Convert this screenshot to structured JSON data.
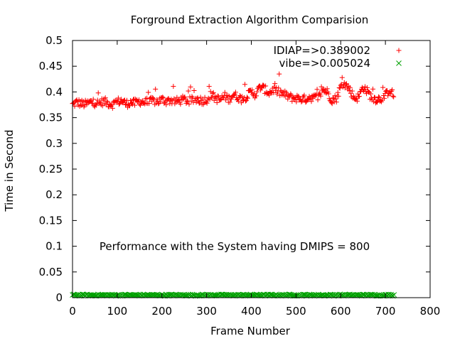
{
  "chart_data": {
    "type": "scatter",
    "title": "Forground Extraction Algorithm Comparision",
    "xlabel": "Frame Number",
    "ylabel": "Time in Second",
    "xlim": [
      0,
      800
    ],
    "ylim": [
      0,
      0.5
    ],
    "xticks": [
      "0",
      "100",
      "200",
      "300",
      "400",
      "500",
      "600",
      "700",
      "800"
    ],
    "yticks": [
      "0",
      "0.05",
      "0.1",
      "0.15",
      "0.2",
      "0.25",
      "0.3",
      "0.35",
      "0.4",
      "0.45",
      "0.5"
    ],
    "grid": false,
    "legend_position": "top-right",
    "annotation": "Performance with the System having DMIPS = 800",
    "series": [
      {
        "name": "IDIAP=>0.389002",
        "marker": "+",
        "color": "#ff0000",
        "x": [
          0,
          10,
          20,
          30,
          40,
          50,
          60,
          70,
          80,
          90,
          100,
          110,
          120,
          130,
          140,
          150,
          160,
          170,
          180,
          190,
          200,
          210,
          220,
          230,
          240,
          250,
          260,
          270,
          280,
          290,
          300,
          310,
          320,
          330,
          340,
          350,
          360,
          370,
          380,
          390,
          400,
          410,
          420,
          430,
          440,
          450,
          460,
          470,
          480,
          490,
          500,
          510,
          520,
          530,
          540,
          550,
          560,
          570,
          580,
          590,
          600,
          610,
          620,
          630,
          640,
          650,
          660,
          670,
          680,
          690,
          700,
          710,
          720
        ],
        "y": [
          0.375,
          0.38,
          0.377,
          0.376,
          0.38,
          0.379,
          0.378,
          0.382,
          0.378,
          0.376,
          0.381,
          0.383,
          0.377,
          0.38,
          0.378,
          0.382,
          0.38,
          0.379,
          0.383,
          0.381,
          0.385,
          0.382,
          0.384,
          0.381,
          0.383,
          0.385,
          0.382,
          0.384,
          0.386,
          0.383,
          0.385,
          0.395,
          0.388,
          0.384,
          0.392,
          0.386,
          0.395,
          0.39,
          0.385,
          0.392,
          0.4,
          0.395,
          0.41,
          0.405,
          0.398,
          0.405,
          0.4,
          0.397,
          0.392,
          0.389,
          0.388,
          0.387,
          0.386,
          0.39,
          0.388,
          0.389,
          0.405,
          0.4,
          0.385,
          0.387,
          0.41,
          0.415,
          0.405,
          0.388,
          0.39,
          0.41,
          0.4,
          0.388,
          0.386,
          0.387,
          0.393,
          0.405,
          0.39
        ],
        "sample_spread": 0.008
      },
      {
        "name": "vibe=>0.005024",
        "marker": "x",
        "color": "#00a000",
        "x": [
          0,
          50,
          100,
          150,
          200,
          250,
          300,
          350,
          400,
          450,
          500,
          550,
          600,
          650,
          700,
          720
        ],
        "y": [
          0.005,
          0.005,
          0.005,
          0.005,
          0.005,
          0.005,
          0.005,
          0.005,
          0.005,
          0.005,
          0.005,
          0.005,
          0.005,
          0.005,
          0.005,
          0.005
        ],
        "sample_spread": 0.0015
      }
    ]
  }
}
